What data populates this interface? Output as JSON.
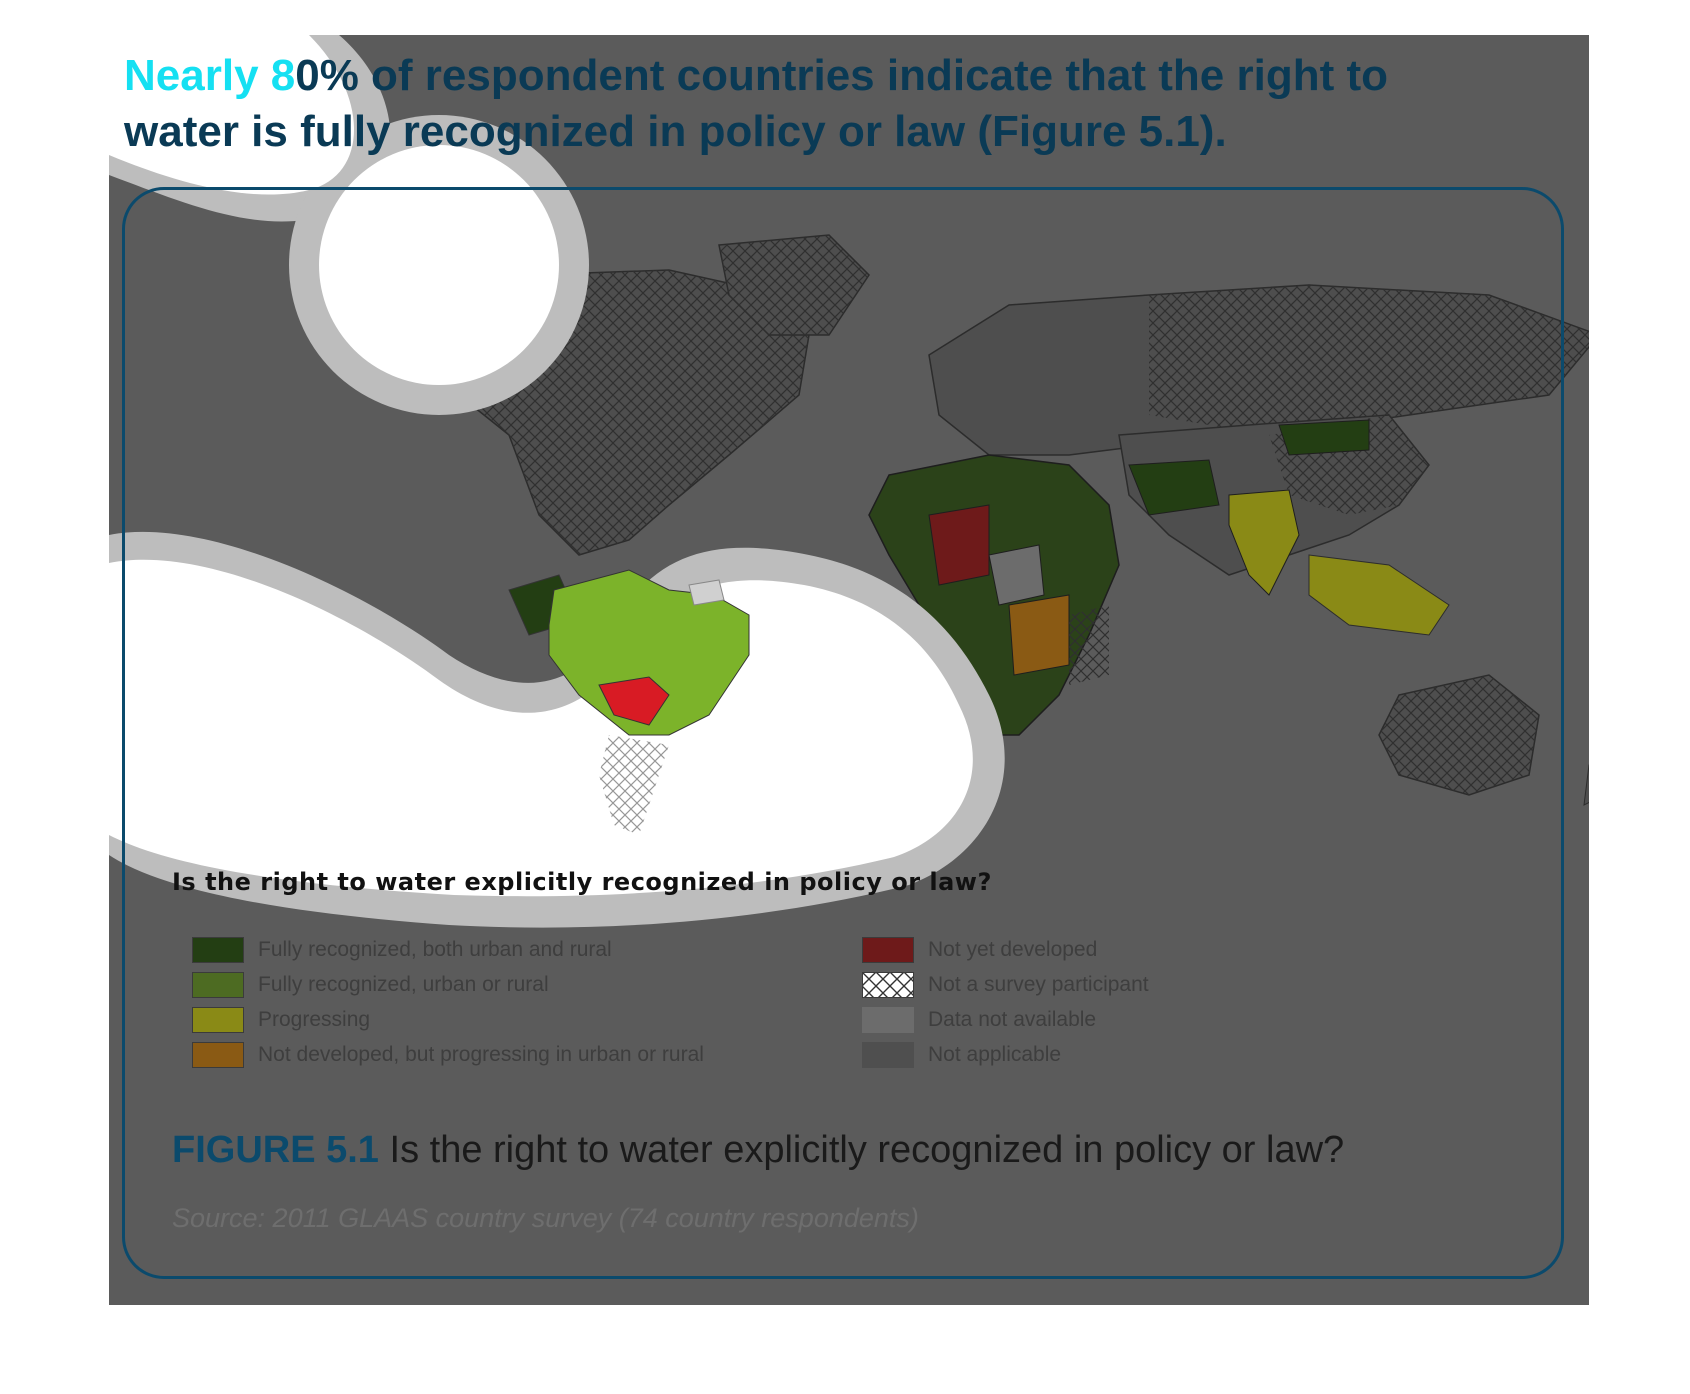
{
  "headline": {
    "lead": "Nearly 8",
    "rest": "0% of respondent countries indicate that the right to water is fully recognized in policy or law (Figure 5.1)."
  },
  "map": {
    "question": "Is the right to water explicitly recognized in policy or law?",
    "legend": [
      {
        "label": "Fully recognized, both urban and rural",
        "color": "#233e13"
      },
      {
        "label": "Fully recognized, urban or rural",
        "color": "#4d6b22"
      },
      {
        "label": "Progressing",
        "color": "#8a8a16"
      },
      {
        "label": "Not developed, but progressing in urban or rural",
        "color": "#8a5a14"
      },
      {
        "label": "Not yet developed",
        "color": "#6e1a1a"
      },
      {
        "label": "Not a survey participant",
        "color": "hatch"
      },
      {
        "label": "Data not available",
        "color": "#6c6c6c"
      },
      {
        "label": "Not applicable",
        "color": "#4f4f4f"
      }
    ]
  },
  "caption": {
    "figure_number": "FIGURE 5.1",
    "text": "Is the right to water explicitly recognized in policy or law?"
  },
  "source": "Source: 2011 GLAAS country survey (74 country respondents)",
  "colors": {
    "overlay": "#5b5b5b",
    "frame": "#0b4a6c",
    "spotlight_ring": "#bdbdbd",
    "brazil": "#7cb32a",
    "paraguay": "#d81b24"
  }
}
